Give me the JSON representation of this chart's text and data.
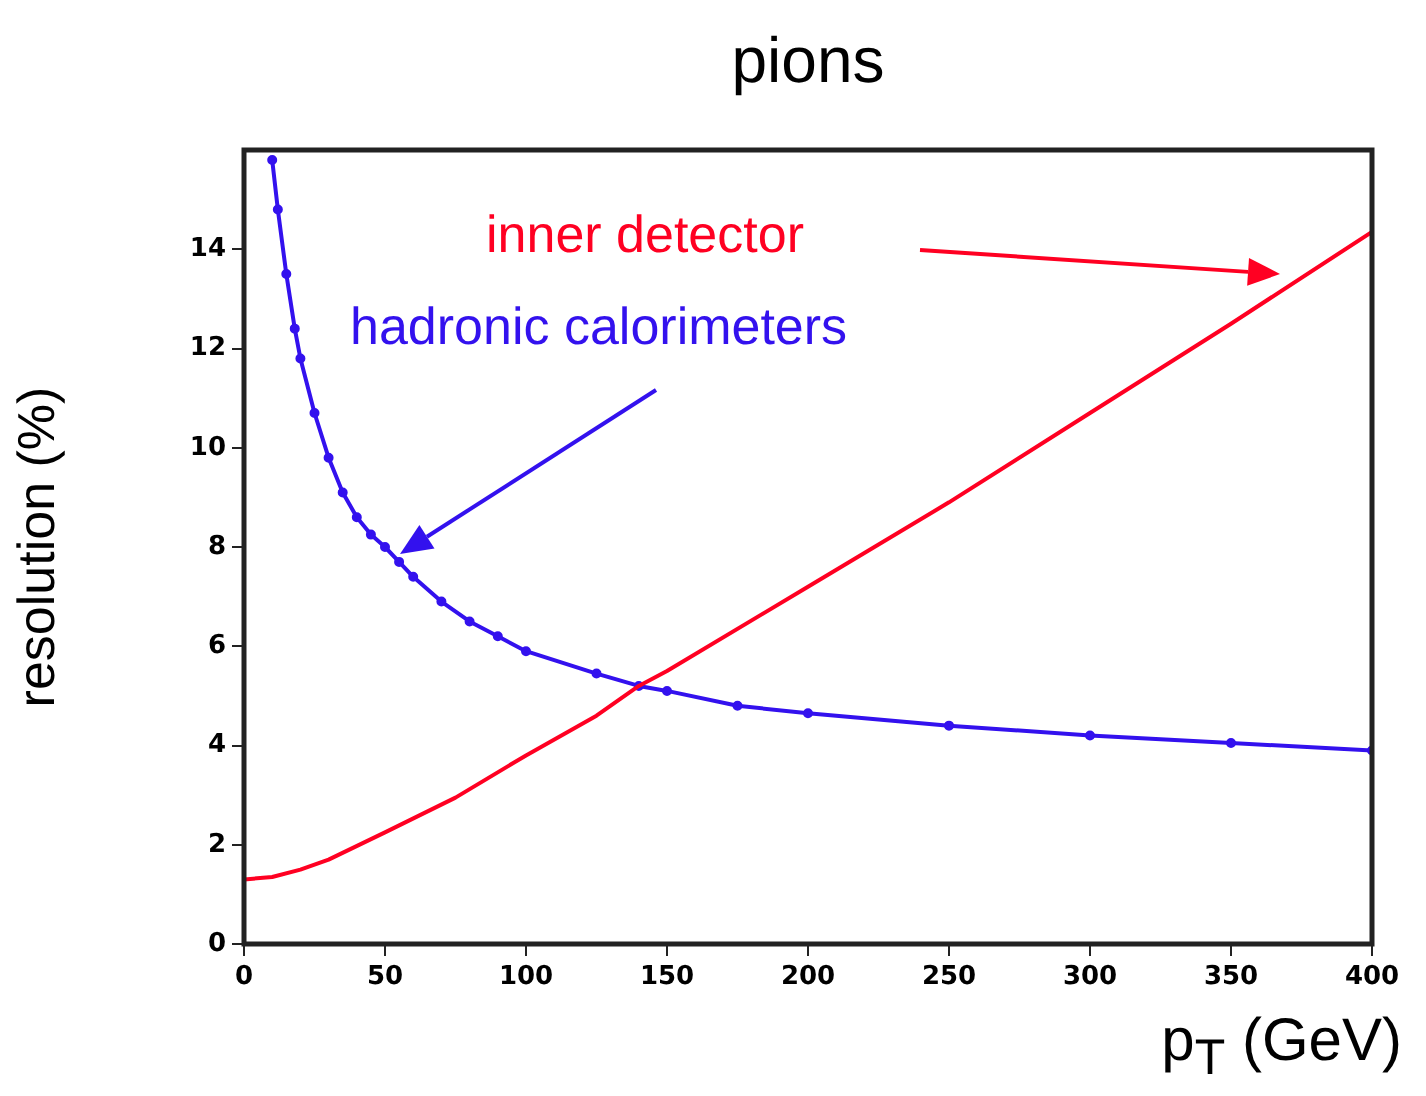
{
  "chart_data": {
    "type": "line",
    "title": "pions",
    "xlabel": "p$_{T}$ (GeV)",
    "ylabel": "resolution (%)",
    "xlim": [
      0,
      400
    ],
    "xticks": [
      0,
      50,
      100,
      150,
      200,
      250,
      300,
      350,
      400
    ],
    "ylim": [
      0,
      16
    ],
    "yticks": [
      0,
      2,
      4,
      6,
      8,
      10,
      12,
      14
    ],
    "grid": false,
    "legend": false,
    "line_style": "solid",
    "series": [
      {
        "color": "#ff0022",
        "marker": "none",
        "x": [
          0,
          10,
          20,
          30,
          50,
          75,
          100,
          125,
          140,
          150,
          200,
          250,
          300,
          350,
          400
        ],
        "values": [
          1.3,
          1.35,
          1.5,
          1.7,
          2.25,
          2.95,
          3.8,
          4.6,
          5.2,
          5.5,
          7.2,
          8.9,
          10.7,
          12.5,
          14.35
        ]
      },
      {
        "color": "#3311ee",
        "marker": "circle",
        "x": [
          10,
          12,
          15,
          18,
          20,
          25,
          30,
          35,
          40,
          45,
          50,
          55,
          60,
          70,
          80,
          90,
          100,
          125,
          140,
          150,
          175,
          200,
          250,
          300,
          350,
          400
        ],
        "values": [
          15.8,
          14.8,
          13.5,
          12.4,
          11.8,
          10.7,
          9.8,
          9.1,
          8.6,
          8.25,
          8.0,
          7.7,
          7.4,
          6.9,
          6.5,
          6.2,
          5.9,
          5.45,
          5.2,
          5.1,
          4.8,
          4.65,
          4.4,
          4.2,
          4.05,
          3.9
        ]
      }
    ],
    "annotations": [
      "inner detector",
      "hadronic calorimeters"
    ]
  }
}
